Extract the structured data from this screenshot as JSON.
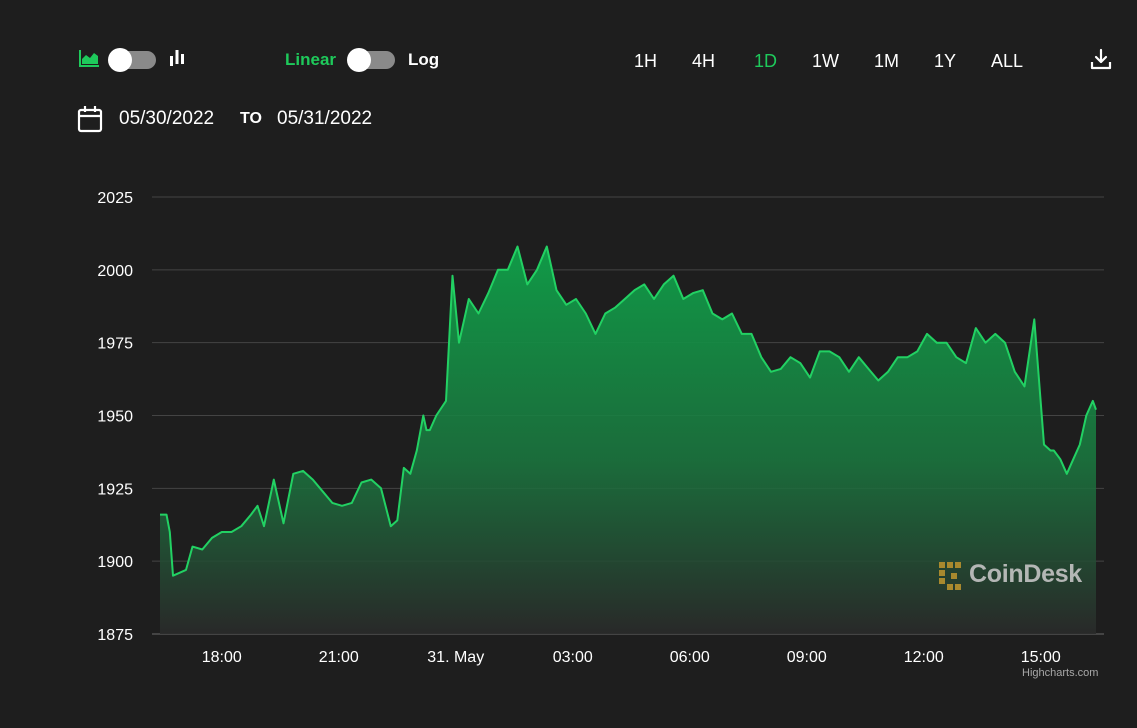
{
  "controls": {
    "chart_type": {
      "left_icon": "area-chart-icon",
      "right_icon": "bar-chart-icon"
    },
    "scale": {
      "linear_label": "Linear",
      "log_label": "Log",
      "selected": "Linear"
    },
    "ranges": [
      "1H",
      "4H",
      "1D",
      "1W",
      "1M",
      "1Y",
      "ALL"
    ],
    "active_range": "1D",
    "download_icon": "download-icon",
    "date": {
      "from": "05/30/2022",
      "separator": "TO",
      "to": "05/31/2022",
      "icon": "calendar-icon"
    }
  },
  "watermark": {
    "text": "CoinDesk"
  },
  "credits": "Highcharts.com",
  "colors": {
    "accent": "#1ec95b",
    "line": "#22d163",
    "background": "#1e1e1e",
    "grid": "#444444"
  },
  "chart_data": {
    "type": "area",
    "title": "",
    "xlabel": "",
    "ylabel": "",
    "ylim": [
      1875,
      2025
    ],
    "xlim": [
      "2022-05-30 16:25",
      "2022-05-31 16:25"
    ],
    "yticks": [
      "1875",
      "1900",
      "1925",
      "1950",
      "1975",
      "2000",
      "2025"
    ],
    "xticks": [
      {
        "x": "2022-05-30 18:00",
        "label": "18:00"
      },
      {
        "x": "2022-05-30 21:00",
        "label": "21:00"
      },
      {
        "x": "2022-05-31 00:00",
        "label": "31. May"
      },
      {
        "x": "2022-05-31 03:00",
        "label": "03:00"
      },
      {
        "x": "2022-05-31 06:00",
        "label": "06:00"
      },
      {
        "x": "2022-05-31 09:00",
        "label": "09:00"
      },
      {
        "x": "2022-05-31 12:00",
        "label": "12:00"
      },
      {
        "x": "2022-05-31 15:00",
        "label": "15:00"
      }
    ],
    "grid": true,
    "legend": "none",
    "series": [
      {
        "x": [
          "2022-05-30 16:25",
          "2022-05-30 16:35",
          "2022-05-30 16:40",
          "2022-05-30 16:45",
          "2022-05-30 16:55",
          "2022-05-30 17:05",
          "2022-05-30 17:15",
          "2022-05-30 17:30",
          "2022-05-30 17:45",
          "2022-05-30 18:00",
          "2022-05-30 18:15",
          "2022-05-30 18:30",
          "2022-05-30 18:45",
          "2022-05-30 18:55",
          "2022-05-30 19:05",
          "2022-05-30 19:20",
          "2022-05-30 19:35",
          "2022-05-30 19:50",
          "2022-05-30 20:05",
          "2022-05-30 20:20",
          "2022-05-30 20:35",
          "2022-05-30 20:50",
          "2022-05-30 21:05",
          "2022-05-30 21:20",
          "2022-05-30 21:35",
          "2022-05-30 21:50",
          "2022-05-30 22:05",
          "2022-05-30 22:20",
          "2022-05-30 22:30",
          "2022-05-30 22:40",
          "2022-05-30 22:50",
          "2022-05-30 23:00",
          "2022-05-30 23:10",
          "2022-05-30 23:15",
          "2022-05-30 23:20",
          "2022-05-30 23:30",
          "2022-05-30 23:45",
          "2022-05-30 23:55",
          "2022-05-31 00:05",
          "2022-05-31 00:20",
          "2022-05-31 00:35",
          "2022-05-31 00:50",
          "2022-05-31 01:05",
          "2022-05-31 01:20",
          "2022-05-31 01:35",
          "2022-05-31 01:50",
          "2022-05-31 02:05",
          "2022-05-31 02:20",
          "2022-05-31 02:35",
          "2022-05-31 02:50",
          "2022-05-31 03:05",
          "2022-05-31 03:20",
          "2022-05-31 03:35",
          "2022-05-31 03:50",
          "2022-05-31 04:05",
          "2022-05-31 04:20",
          "2022-05-31 04:35",
          "2022-05-31 04:50",
          "2022-05-31 05:05",
          "2022-05-31 05:20",
          "2022-05-31 05:35",
          "2022-05-31 05:50",
          "2022-05-31 06:05",
          "2022-05-31 06:20",
          "2022-05-31 06:35",
          "2022-05-31 06:50",
          "2022-05-31 07:05",
          "2022-05-31 07:20",
          "2022-05-31 07:35",
          "2022-05-31 07:50",
          "2022-05-31 08:05",
          "2022-05-31 08:20",
          "2022-05-31 08:35",
          "2022-05-31 08:50",
          "2022-05-31 09:05",
          "2022-05-31 09:20",
          "2022-05-31 09:35",
          "2022-05-31 09:50",
          "2022-05-31 10:05",
          "2022-05-31 10:20",
          "2022-05-31 10:35",
          "2022-05-31 10:50",
          "2022-05-31 11:05",
          "2022-05-31 11:20",
          "2022-05-31 11:35",
          "2022-05-31 11:50",
          "2022-05-31 12:05",
          "2022-05-31 12:20",
          "2022-05-31 12:35",
          "2022-05-31 12:50",
          "2022-05-31 13:05",
          "2022-05-31 13:20",
          "2022-05-31 13:35",
          "2022-05-31 13:50",
          "2022-05-31 14:05",
          "2022-05-31 14:20",
          "2022-05-31 14:35",
          "2022-05-31 14:50",
          "2022-05-31 15:05",
          "2022-05-31 15:15",
          "2022-05-31 15:20",
          "2022-05-31 15:30",
          "2022-05-31 15:40",
          "2022-05-31 15:50",
          "2022-05-31 16:00",
          "2022-05-31 16:10",
          "2022-05-31 16:20",
          "2022-05-31 16:25"
        ],
        "values": [
          1916,
          1916,
          1910,
          1895,
          1896,
          1897,
          1905,
          1904,
          1908,
          1910,
          1910,
          1912,
          1916,
          1919,
          1912,
          1928,
          1913,
          1930,
          1931,
          1928,
          1924,
          1920,
          1919,
          1920,
          1927,
          1928,
          1925,
          1912,
          1914,
          1932,
          1930,
          1938,
          1950,
          1945,
          1945,
          1950,
          1955,
          1998,
          1975,
          1990,
          1985,
          1992,
          2000,
          2000,
          2008,
          1995,
          2000,
          2008,
          1993,
          1988,
          1990,
          1985,
          1978,
          1985,
          1987,
          1990,
          1993,
          1995,
          1990,
          1995,
          1998,
          1990,
          1992,
          1993,
          1985,
          1983,
          1985,
          1978,
          1978,
          1970,
          1965,
          1966,
          1970,
          1968,
          1963,
          1972,
          1972,
          1970,
          1965,
          1970,
          1966,
          1962,
          1965,
          1970,
          1970,
          1972,
          1978,
          1975,
          1975,
          1970,
          1968,
          1980,
          1975,
          1978,
          1975,
          1965,
          1960,
          1983,
          1940,
          1938,
          1938,
          1935,
          1930,
          1935,
          1940,
          1950,
          1955,
          1952
        ]
      }
    ]
  }
}
